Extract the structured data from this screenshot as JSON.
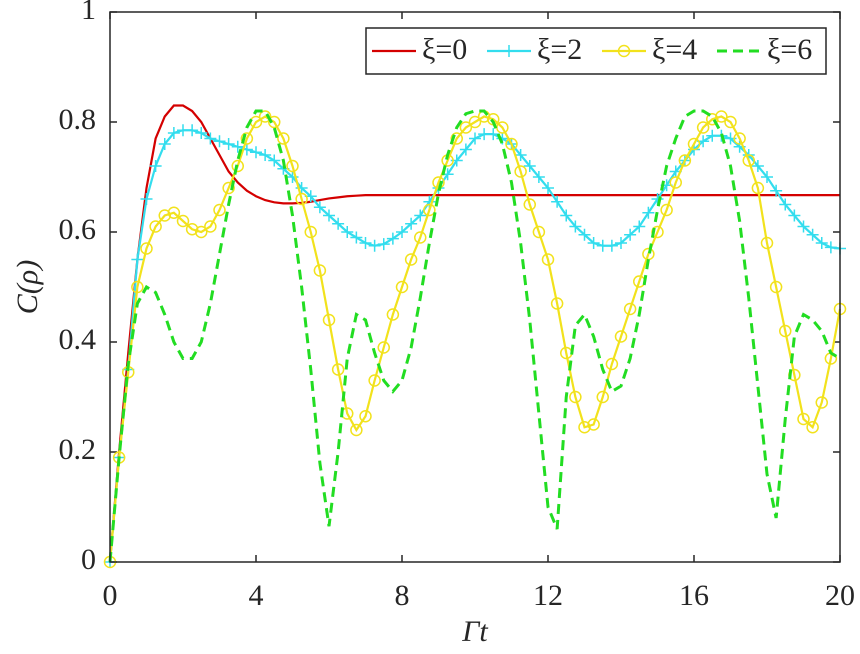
{
  "chart_data": {
    "type": "line",
    "x_label": "Γt",
    "y_label": "C(ρ)",
    "x": [
      0,
      0.25,
      0.5,
      0.75,
      1,
      1.25,
      1.5,
      1.75,
      2,
      2.25,
      2.5,
      2.75,
      3,
      3.25,
      3.5,
      3.75,
      4,
      4.25,
      4.5,
      4.75,
      5,
      5.25,
      5.5,
      5.75,
      6,
      6.25,
      6.5,
      6.75,
      7,
      7.25,
      7.5,
      7.75,
      8,
      8.25,
      8.5,
      8.75,
      9,
      9.25,
      9.5,
      9.75,
      10,
      10.25,
      10.5,
      10.75,
      11,
      11.25,
      11.5,
      11.75,
      12,
      12.25,
      12.5,
      12.75,
      13,
      13.25,
      13.5,
      13.75,
      14,
      14.25,
      14.5,
      14.75,
      15,
      15.25,
      15.5,
      15.75,
      16,
      16.25,
      16.5,
      16.75,
      17,
      17.25,
      17.5,
      17.75,
      18,
      18.25,
      18.5,
      18.75,
      19,
      19.25,
      19.5,
      19.75,
      20
    ],
    "series": [
      {
        "name": "ξ=0",
        "color": "#d40000",
        "marker": "none",
        "dash": "solid",
        "values": [
          0,
          0.2,
          0.38,
          0.55,
          0.68,
          0.77,
          0.81,
          0.83,
          0.83,
          0.82,
          0.8,
          0.77,
          0.74,
          0.71,
          0.69,
          0.675,
          0.665,
          0.658,
          0.654,
          0.652,
          0.652,
          0.653,
          0.655,
          0.658,
          0.661,
          0.663,
          0.665,
          0.666,
          0.667,
          0.667,
          0.667,
          0.667,
          0.667,
          0.667,
          0.667,
          0.667,
          0.667,
          0.667,
          0.667,
          0.667,
          0.667,
          0.667,
          0.667,
          0.667,
          0.667,
          0.667,
          0.667,
          0.667,
          0.667,
          0.667,
          0.667,
          0.667,
          0.667,
          0.667,
          0.667,
          0.667,
          0.667,
          0.667,
          0.667,
          0.667,
          0.667,
          0.667,
          0.667,
          0.667,
          0.667,
          0.667,
          0.667,
          0.667,
          0.667,
          0.667,
          0.667,
          0.667,
          0.667,
          0.667,
          0.667,
          0.667,
          0.667,
          0.667,
          0.667,
          0.667,
          0.667
        ]
      },
      {
        "name": "ξ=2",
        "color": "#33ddee",
        "marker": "plus",
        "dash": "solid",
        "values": [
          0,
          0.19,
          0.35,
          0.55,
          0.66,
          0.72,
          0.76,
          0.78,
          0.785,
          0.785,
          0.78,
          0.77,
          0.765,
          0.76,
          0.755,
          0.75,
          0.745,
          0.74,
          0.73,
          0.715,
          0.7,
          0.68,
          0.665,
          0.645,
          0.63,
          0.615,
          0.6,
          0.59,
          0.58,
          0.575,
          0.578,
          0.588,
          0.6,
          0.615,
          0.63,
          0.655,
          0.68,
          0.705,
          0.73,
          0.75,
          0.77,
          0.778,
          0.778,
          0.77,
          0.76,
          0.74,
          0.72,
          0.7,
          0.68,
          0.655,
          0.63,
          0.61,
          0.595,
          0.58,
          0.575,
          0.575,
          0.58,
          0.595,
          0.61,
          0.635,
          0.66,
          0.685,
          0.71,
          0.73,
          0.75,
          0.765,
          0.775,
          0.775,
          0.77,
          0.755,
          0.74,
          0.72,
          0.7,
          0.675,
          0.65,
          0.63,
          0.61,
          0.595,
          0.58,
          0.572,
          0.57
        ]
      },
      {
        "name": "ξ=4",
        "color": "#f2e21c",
        "marker": "circle",
        "dash": "solid",
        "values": [
          0,
          0.19,
          0.345,
          0.5,
          0.57,
          0.61,
          0.63,
          0.635,
          0.62,
          0.605,
          0.6,
          0.61,
          0.64,
          0.68,
          0.72,
          0.77,
          0.8,
          0.81,
          0.8,
          0.77,
          0.72,
          0.66,
          0.6,
          0.53,
          0.44,
          0.35,
          0.27,
          0.24,
          0.265,
          0.33,
          0.39,
          0.45,
          0.5,
          0.55,
          0.59,
          0.64,
          0.69,
          0.73,
          0.77,
          0.79,
          0.8,
          0.81,
          0.805,
          0.79,
          0.76,
          0.71,
          0.65,
          0.6,
          0.55,
          0.47,
          0.38,
          0.3,
          0.245,
          0.25,
          0.3,
          0.36,
          0.41,
          0.46,
          0.51,
          0.56,
          0.6,
          0.64,
          0.69,
          0.73,
          0.76,
          0.79,
          0.805,
          0.81,
          0.8,
          0.77,
          0.73,
          0.68,
          0.58,
          0.5,
          0.42,
          0.34,
          0.26,
          0.245,
          0.29,
          0.37,
          0.46
        ]
      },
      {
        "name": "ξ=6",
        "color": "#22dd22",
        "marker": "none",
        "dash": "dashed",
        "values": [
          0,
          0.19,
          0.36,
          0.47,
          0.5,
          0.49,
          0.45,
          0.4,
          0.37,
          0.37,
          0.4,
          0.47,
          0.56,
          0.65,
          0.73,
          0.79,
          0.82,
          0.82,
          0.79,
          0.73,
          0.63,
          0.5,
          0.35,
          0.18,
          0.065,
          0.2,
          0.37,
          0.45,
          0.44,
          0.38,
          0.33,
          0.31,
          0.33,
          0.39,
          0.48,
          0.58,
          0.67,
          0.74,
          0.79,
          0.815,
          0.82,
          0.82,
          0.8,
          0.76,
          0.69,
          0.58,
          0.44,
          0.27,
          0.1,
          0.06,
          0.3,
          0.43,
          0.45,
          0.41,
          0.35,
          0.31,
          0.32,
          0.37,
          0.45,
          0.55,
          0.64,
          0.72,
          0.77,
          0.81,
          0.82,
          0.82,
          0.81,
          0.78,
          0.72,
          0.62,
          0.48,
          0.32,
          0.16,
          0.08,
          0.26,
          0.41,
          0.45,
          0.44,
          0.42,
          0.38,
          0.37
        ]
      }
    ],
    "xlim": [
      0,
      20
    ],
    "xticks": [
      0,
      4,
      8,
      12,
      16,
      20
    ],
    "ylim": [
      0,
      1
    ],
    "yticks": [
      0,
      0.2,
      0.4,
      0.6,
      0.8,
      1
    ],
    "grid": false,
    "legend": "upper right"
  }
}
